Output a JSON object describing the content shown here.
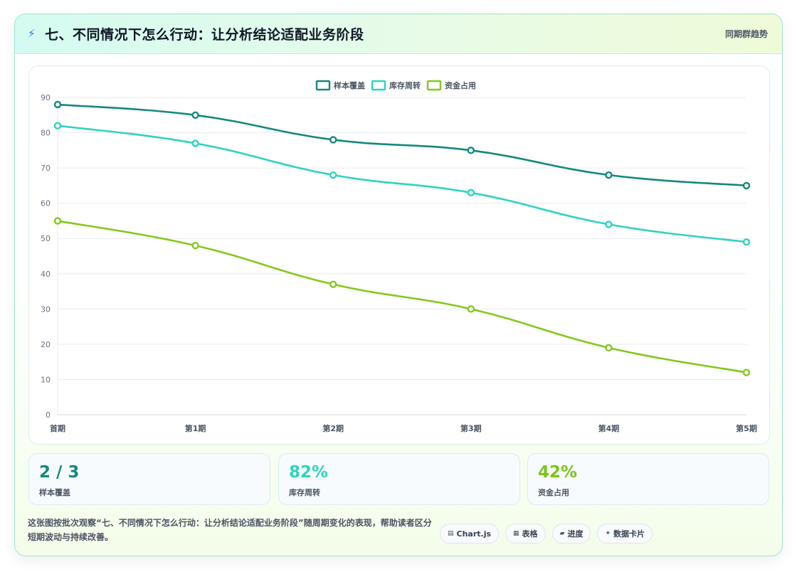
{
  "header": {
    "title": "七、不同情况下怎么行动：让分析结论适配业务阶段",
    "tag": "同期群趋势"
  },
  "chart_data": {
    "type": "line",
    "categories": [
      "首期",
      "第1期",
      "第2期",
      "第3期",
      "第4期",
      "第5期"
    ],
    "series": [
      {
        "name": "样本覆盖",
        "color": "#13897c",
        "values": [
          88,
          85,
          78,
          75,
          68,
          65
        ]
      },
      {
        "name": "库存周转",
        "color": "#2ed3c0",
        "values": [
          82,
          77,
          68,
          63,
          54,
          49
        ]
      },
      {
        "name": "资金占用",
        "color": "#84c91c",
        "values": [
          55,
          48,
          37,
          30,
          19,
          12
        ]
      }
    ],
    "ylim": [
      0,
      90
    ],
    "yticks": [
      0,
      10,
      20,
      30,
      40,
      50,
      60,
      70,
      80,
      90
    ],
    "legend": "top-center",
    "grid": true
  },
  "stats": [
    {
      "value": "2 / 3",
      "label": "样本覆盖",
      "color": "#13897c"
    },
    {
      "value": "82%",
      "label": "库存周转",
      "color": "#2ed3c0"
    },
    {
      "value": "42%",
      "label": "资金占用",
      "color": "#7cc41c"
    }
  ],
  "description": "这张图按批次观察“七、不同情况下怎么行动：让分析结论适配业务阶段”随周期变化的表现，帮助读者区分短期波动与持续改善。",
  "chips": [
    {
      "icon": "chart-icon",
      "glyph": "▤",
      "label": "Chart.js"
    },
    {
      "icon": "table-icon",
      "glyph": "▦",
      "label": "表格"
    },
    {
      "icon": "progress-icon",
      "glyph": "▰",
      "label": "进度"
    },
    {
      "icon": "card-icon",
      "glyph": "✦",
      "label": "数据卡片"
    }
  ]
}
